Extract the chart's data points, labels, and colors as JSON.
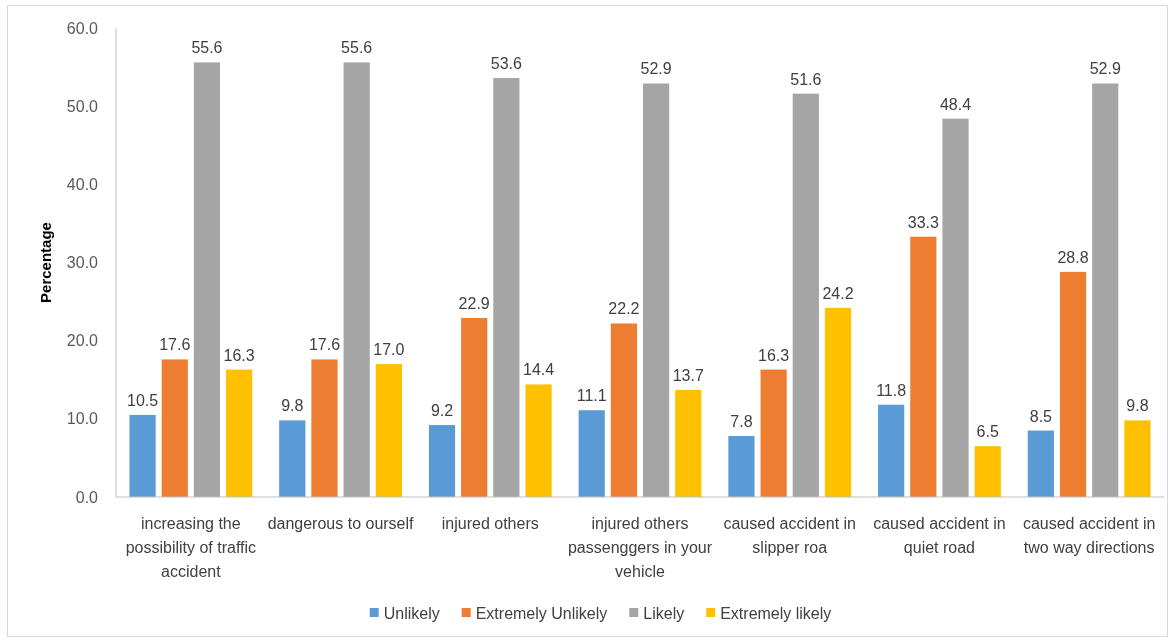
{
  "chart_data": {
    "type": "bar",
    "ylabel": "Percentage",
    "categories": [
      "increasing the possibility of traffic accident",
      "dangerous to ourself",
      "injured others",
      "injured others passenggers in your vehicle",
      "caused accident in slipper roa",
      "caused accident in quiet road",
      "caused accident in two way directions"
    ],
    "series": [
      {
        "name": "Unlikely",
        "color": "#5b9bd5",
        "values": [
          10.5,
          9.8,
          9.2,
          11.1,
          7.8,
          11.8,
          8.5
        ],
        "value_labels": [
          "10.5",
          "9.8",
          "9.2",
          "11.1",
          "7.8",
          "11.8",
          "8.5"
        ]
      },
      {
        "name": "Extremely Unlikely",
        "color": "#ed7d31",
        "values": [
          17.6,
          17.6,
          22.9,
          22.2,
          16.3,
          33.3,
          28.8
        ],
        "value_labels": [
          "17.6",
          "17.6",
          "22.9",
          "22.2",
          "16.3",
          "33.3",
          "28.8"
        ]
      },
      {
        "name": "Likely",
        "color": "#a5a5a5",
        "values": [
          55.6,
          55.6,
          53.6,
          52.9,
          51.6,
          48.4,
          52.9
        ],
        "value_labels": [
          "55.6",
          "55.6",
          "53.6",
          "52.9",
          "51.6",
          "48.4",
          "52.9"
        ]
      },
      {
        "name": "Extremely likely",
        "color": "#ffc000",
        "values": [
          16.3,
          17.0,
          14.4,
          13.7,
          24.2,
          6.5,
          9.8
        ],
        "value_labels": [
          "16.3",
          "17.0",
          "14.4",
          "13.7",
          "24.2",
          "6.5",
          "9.8"
        ]
      }
    ],
    "ylim": [
      0,
      60
    ],
    "yticks": [
      {
        "value": 0,
        "label": "0.0"
      },
      {
        "value": 10,
        "label": "10.0"
      },
      {
        "value": 20,
        "label": "20.0"
      },
      {
        "value": 30,
        "label": "30.0"
      },
      {
        "value": 40,
        "label": "40.0"
      },
      {
        "value": 50,
        "label": "50.0"
      },
      {
        "value": 60,
        "label": "60.0"
      }
    ],
    "legend": "bottom"
  }
}
